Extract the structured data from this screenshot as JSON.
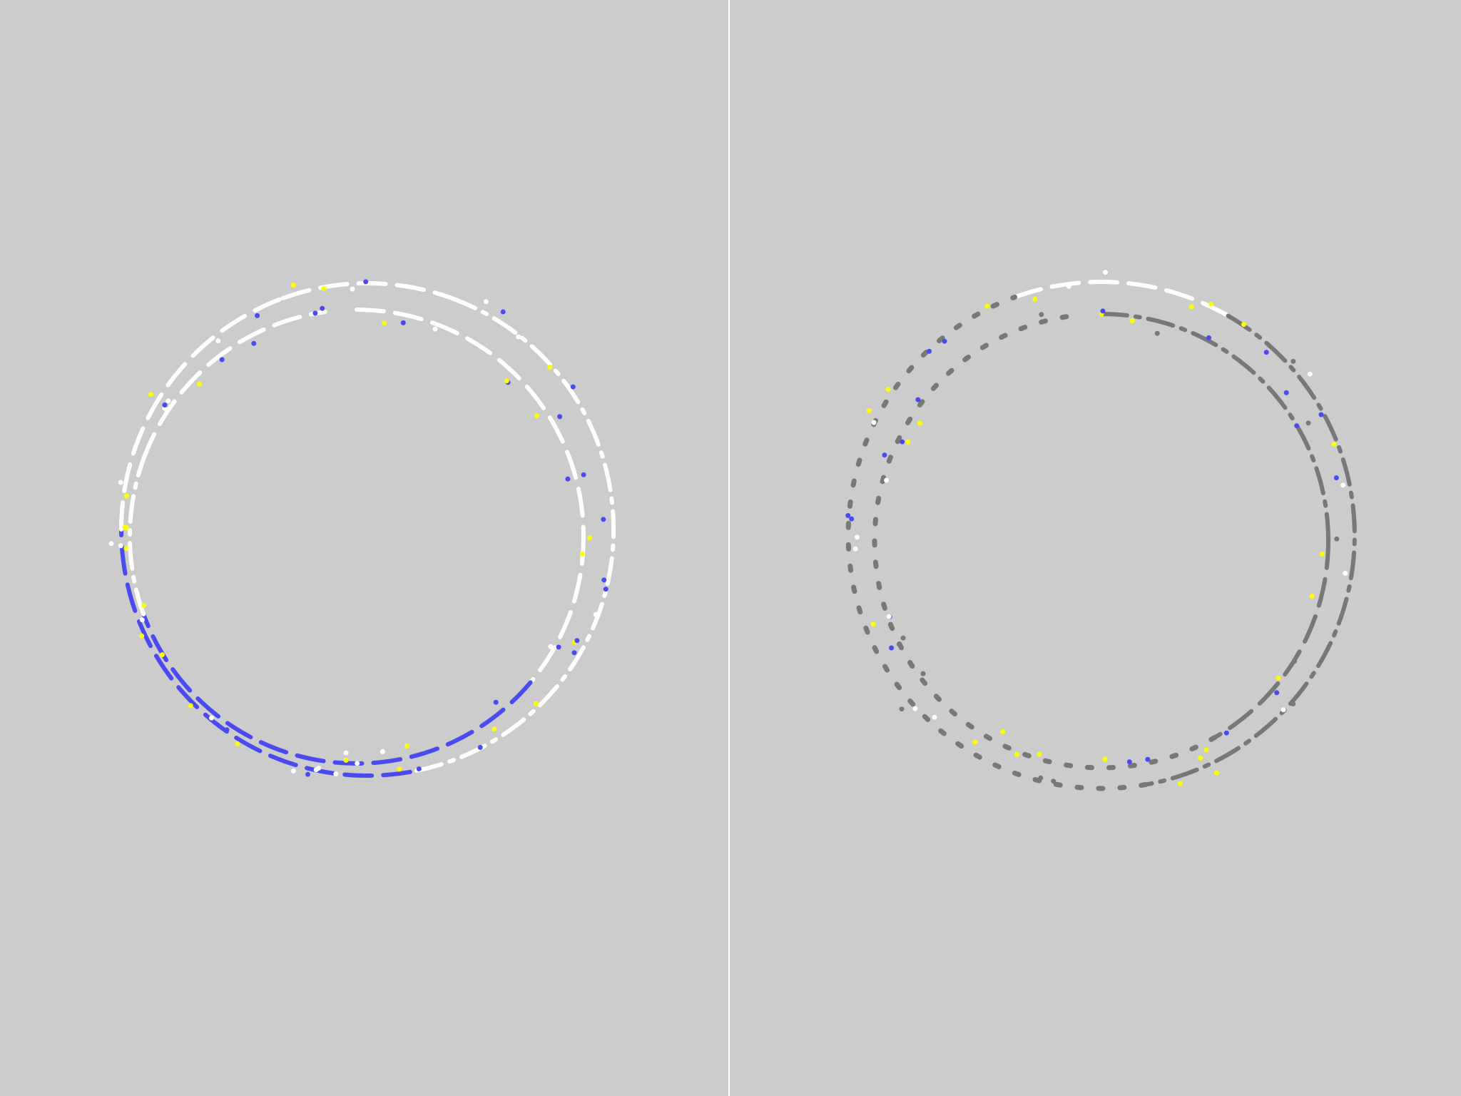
{
  "background": "#cccccc",
  "divider_color": "#ffffff",
  "palette": {
    "white": "#ffffff",
    "blue": "#4a4af0",
    "yellow": "#ffff00",
    "gray": "#787878"
  },
  "panels": [
    {
      "name": "left-panel",
      "rings": [
        {
          "name": "outer-ring",
          "segments": [
            {
              "color": "white",
              "style": "dash",
              "from": 250,
              "to": 290
            },
            {
              "color": "white",
              "style": "dashdot",
              "from": 290,
              "to": 80
            },
            {
              "color": "blue",
              "style": "dash",
              "from": 80,
              "to": 180
            },
            {
              "color": "white",
              "style": "dash",
              "from": 180,
              "to": 250
            }
          ]
        },
        {
          "name": "inner-ring",
          "segments": [
            {
              "color": "white",
              "style": "dash",
              "from": 270,
              "to": 360
            },
            {
              "color": "white",
              "style": "dash",
              "from": 0,
              "to": 40
            },
            {
              "color": "blue",
              "style": "dash",
              "from": 40,
              "to": 160
            },
            {
              "color": "white",
              "style": "dashdot",
              "from": 160,
              "to": 200
            },
            {
              "color": "white",
              "style": "dash",
              "from": 200,
              "to": 262
            }
          ]
        }
      ]
    },
    {
      "name": "right-panel",
      "rings": [
        {
          "name": "outer-ring",
          "segments": [
            {
              "color": "white",
              "style": "dash",
              "from": 250,
              "to": 300
            },
            {
              "color": "gray",
              "style": "dashdot",
              "from": 300,
              "to": 80
            },
            {
              "color": "gray",
              "style": "sparse",
              "from": 80,
              "to": 250
            }
          ]
        },
        {
          "name": "inner-ring",
          "segments": [
            {
              "color": "gray",
              "style": "dashdot",
              "from": 270,
              "to": 360
            },
            {
              "color": "gray",
              "style": "dash",
              "from": 0,
              "to": 60
            },
            {
              "color": "gray",
              "style": "sparse",
              "from": 60,
              "to": 262
            }
          ]
        }
      ]
    }
  ]
}
